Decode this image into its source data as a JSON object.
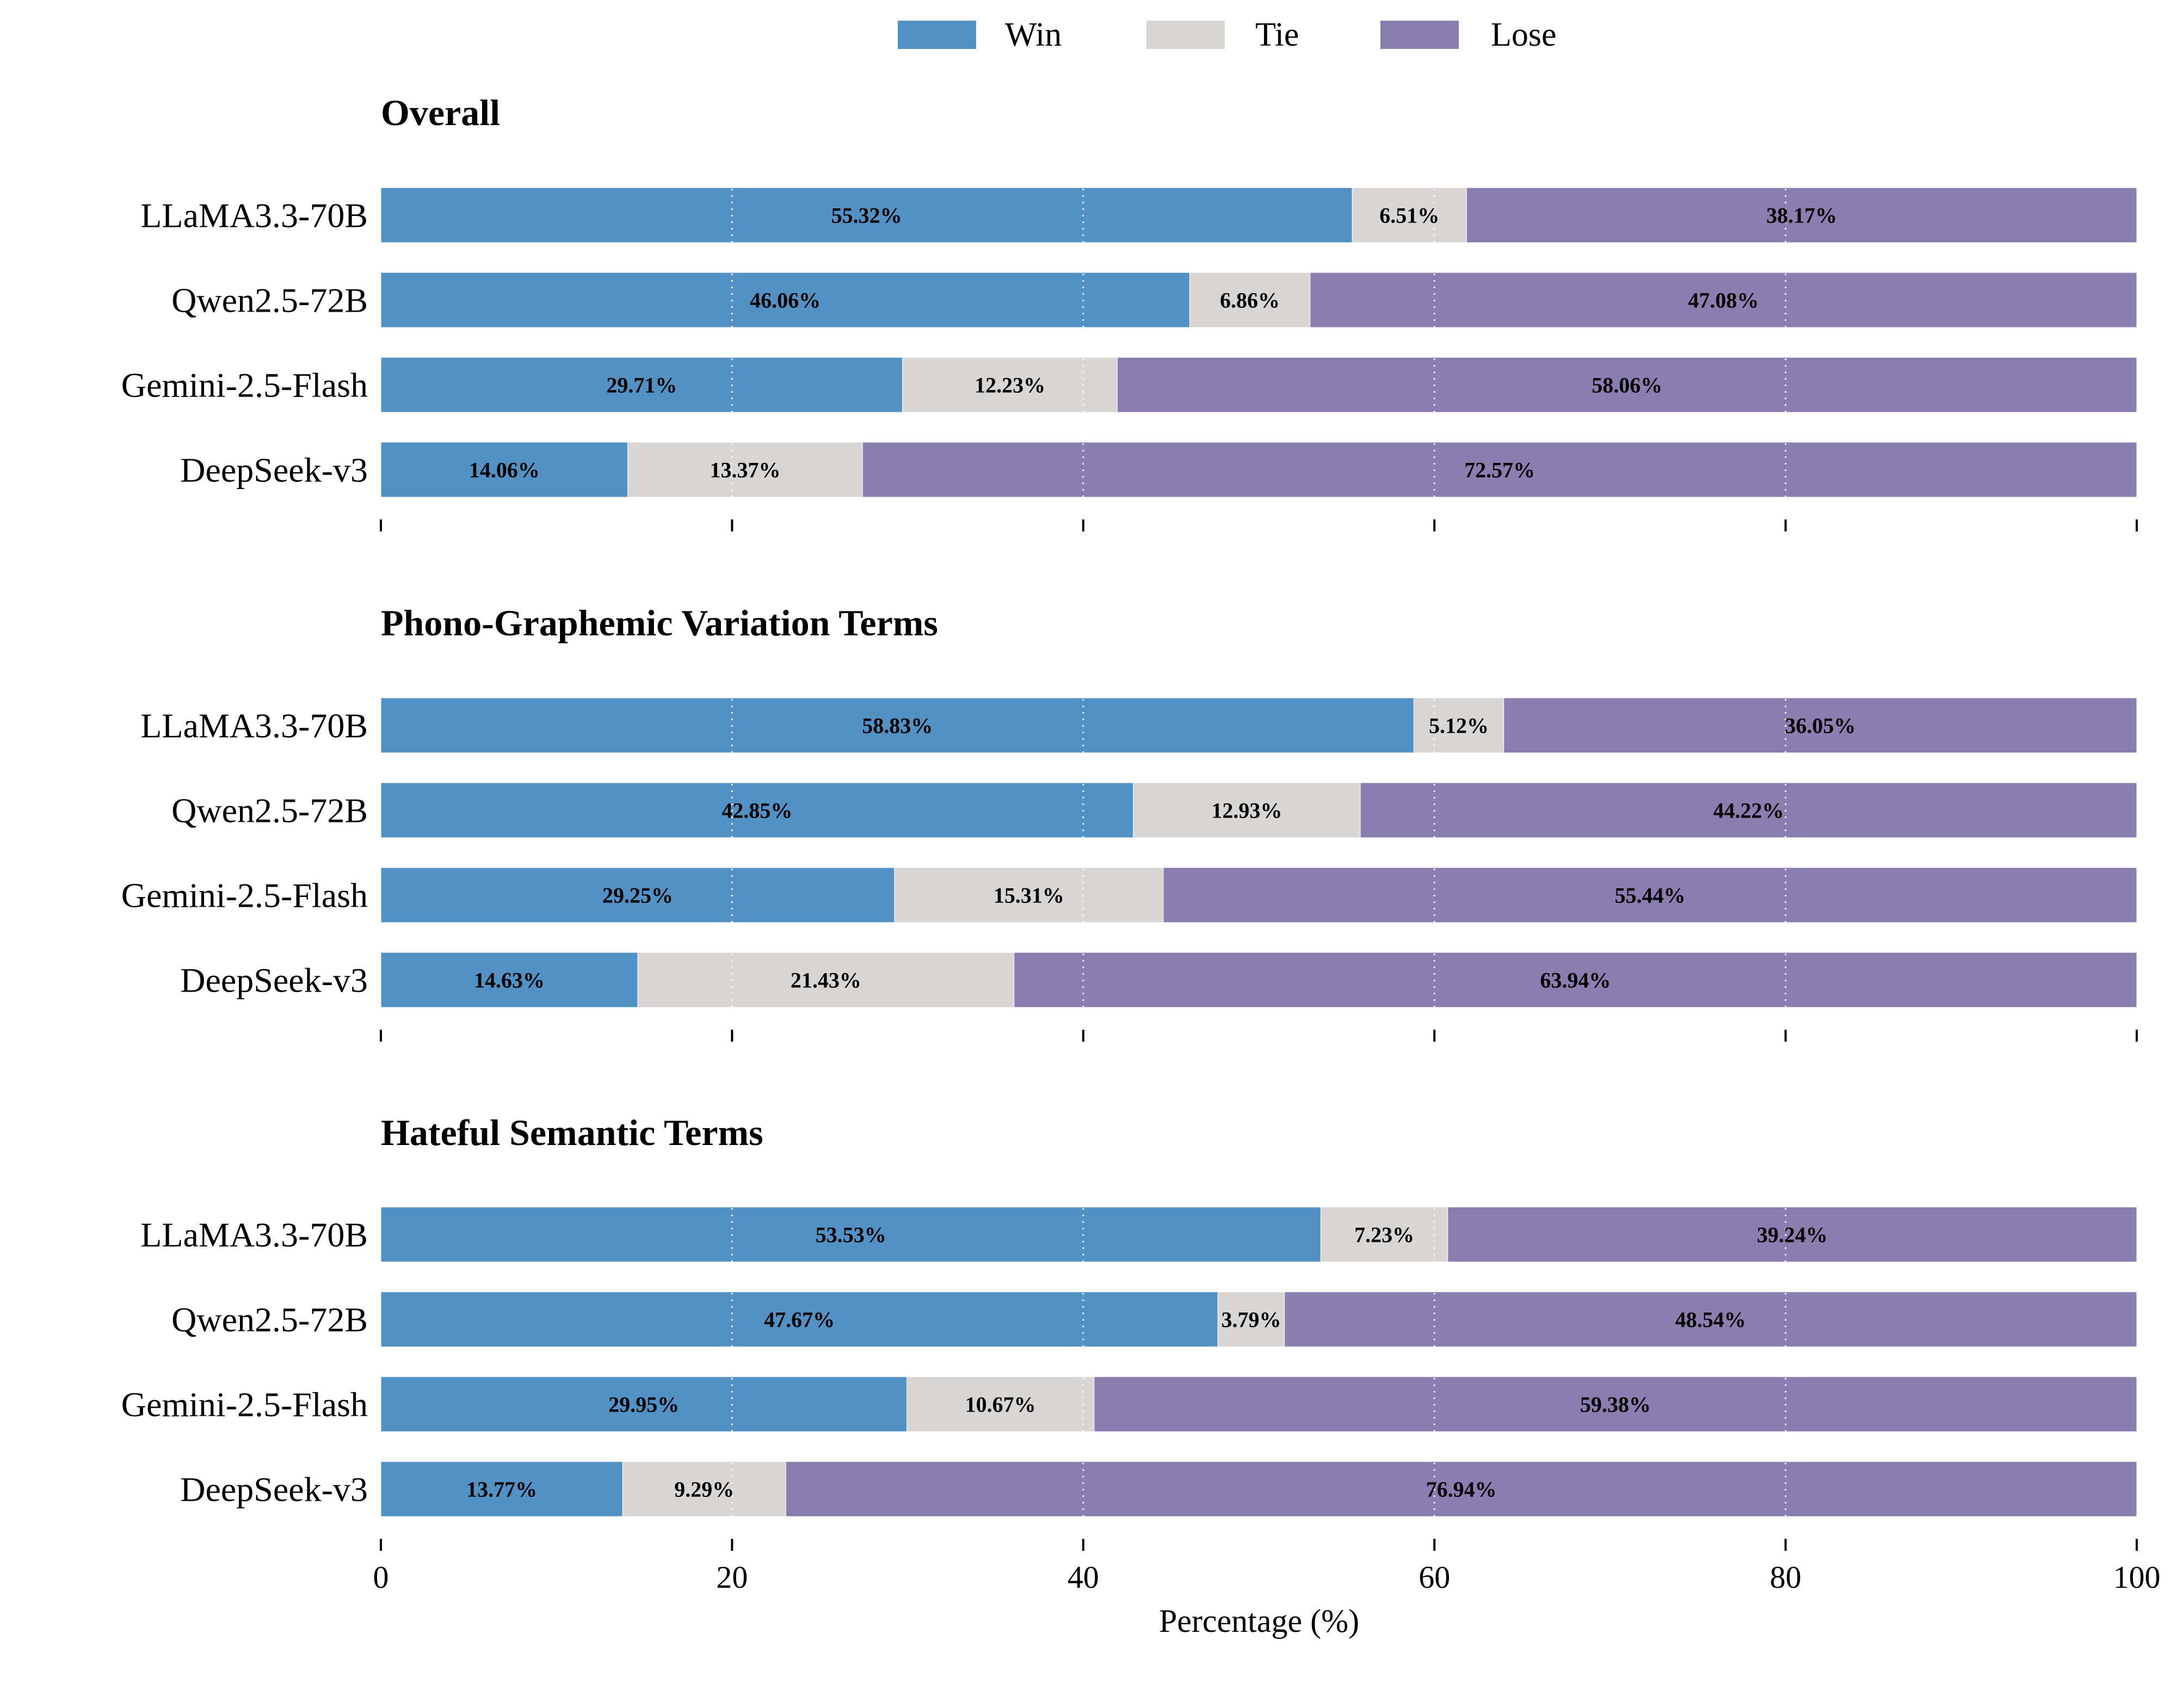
{
  "chart_data": {
    "type": "bar",
    "orientation": "horizontal",
    "stacked": true,
    "xlabel": "Percentage (%)",
    "xlim": [
      0,
      100
    ],
    "xticks": [
      0,
      20,
      40,
      60,
      80,
      100
    ],
    "grid": "x-dotted",
    "legend": {
      "position": "top-center",
      "entries": [
        {
          "name": "Win",
          "color": "#5390c4"
        },
        {
          "name": "Tie",
          "color": "#d8d5d5"
        },
        {
          "name": "Lose",
          "color": "#8a7db0"
        }
      ]
    },
    "categories": [
      "LLaMA3.3-70B",
      "Qwen2.5-72B",
      "Gemini-2.5-Flash",
      "DeepSeek-v3"
    ],
    "panels": [
      {
        "title": "Overall",
        "series": [
          {
            "name": "Win",
            "values": [
              55.32,
              46.06,
              29.71,
              14.06
            ],
            "labels": [
              "55.32%",
              "46.06%",
              "29.71%",
              "14.06%"
            ]
          },
          {
            "name": "Tie",
            "values": [
              6.51,
              6.86,
              12.23,
              13.37
            ],
            "labels": [
              "6.51%",
              "6.86%",
              "12.23%",
              "13.37%"
            ]
          },
          {
            "name": "Lose",
            "values": [
              38.17,
              47.08,
              58.06,
              72.57
            ],
            "labels": [
              "38.17%",
              "47.08%",
              "58.06%",
              "72.57%"
            ]
          }
        ]
      },
      {
        "title": "Phono-Graphemic Variation Terms",
        "series": [
          {
            "name": "Win",
            "values": [
              58.83,
              42.85,
              29.25,
              14.63
            ],
            "labels": [
              "58.83%",
              "42.85%",
              "29.25%",
              "14.63%"
            ]
          },
          {
            "name": "Tie",
            "values": [
              5.12,
              12.93,
              15.31,
              21.43
            ],
            "labels": [
              "5.12%",
              "12.93%",
              "15.31%",
              "21.43%"
            ]
          },
          {
            "name": "Lose",
            "values": [
              36.05,
              44.22,
              55.44,
              63.94
            ],
            "labels": [
              "36.05%",
              "44.22%",
              "55.44%",
              "63.94%"
            ]
          }
        ]
      },
      {
        "title": "Hateful Semantic Terms",
        "series": [
          {
            "name": "Win",
            "values": [
              53.53,
              47.67,
              29.95,
              13.77
            ],
            "labels": [
              "53.53%",
              "47.67%",
              "29.95%",
              "13.77%"
            ]
          },
          {
            "name": "Tie",
            "values": [
              7.23,
              3.79,
              10.67,
              9.29
            ],
            "labels": [
              "7.23%",
              "3.79%",
              "10.67%",
              "9.29%"
            ]
          },
          {
            "name": "Lose",
            "values": [
              39.24,
              48.54,
              59.38,
              76.94
            ],
            "labels": [
              "39.24%",
              "48.54%",
              "59.38%",
              "76.94%"
            ]
          }
        ]
      }
    ]
  }
}
